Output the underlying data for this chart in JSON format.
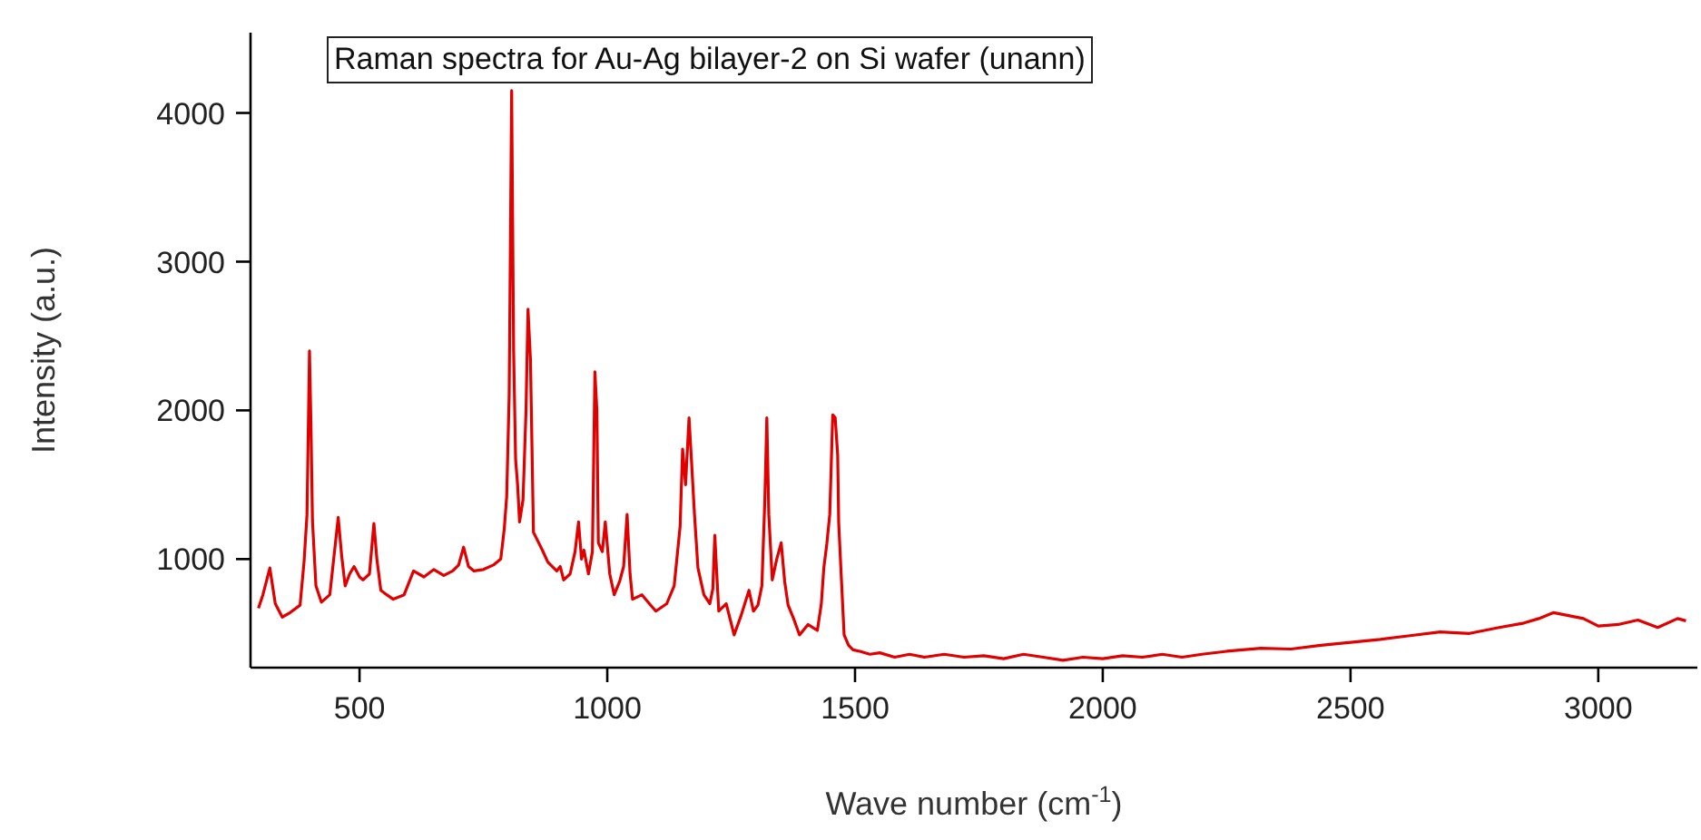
{
  "chart_data": {
    "type": "line",
    "title": "Raman spectra for Au-Ag bilayer-2 on Si wafer (unann)",
    "xlabel": "Wave number (cm$^{-1}$)",
    "ylabel": "Intensity (a.u.)",
    "xlim": [
      280,
      3200
    ],
    "ylim": [
      270,
      4540
    ],
    "xticks": [
      500,
      1000,
      1500,
      2000,
      2500,
      3000
    ],
    "yticks": [
      1000,
      2000,
      3000,
      4000
    ],
    "marker": "none",
    "line_style": "solid",
    "series": [
      {
        "color": "#e00000",
        "x": [
          296,
          305,
          319,
          330,
          344,
          360,
          380,
          388,
          394,
          399,
          402,
          405,
          412,
          423,
          440,
          457,
          464,
          471,
          480,
          489,
          500,
          507,
          520,
          529,
          535,
          543,
          555,
          568,
          590,
          609,
          630,
          650,
          670,
          688,
          700,
          710,
          720,
          731,
          750,
          770,
          785,
          792,
          797,
          802,
          807,
          811,
          815,
          819,
          823,
          830,
          836,
          840,
          845,
          851,
          860,
          869,
          880,
          898,
          905,
          912,
          925,
          935,
          942,
          948,
          953,
          962,
          970,
          975,
          979,
          982,
          990,
          996,
          1005,
          1014,
          1025,
          1033,
          1040,
          1046,
          1051,
          1070,
          1085,
          1098,
          1120,
          1135,
          1147,
          1152,
          1158,
          1165,
          1170,
          1176,
          1183,
          1195,
          1207,
          1213,
          1217,
          1221,
          1225,
          1240,
          1256,
          1270,
          1286,
          1295,
          1304,
          1312,
          1318,
          1322,
          1326,
          1333,
          1342,
          1351,
          1358,
          1365,
          1376,
          1388,
          1405,
          1424,
          1432,
          1437,
          1443,
          1449,
          1455,
          1460,
          1465,
          1467,
          1472,
          1478,
          1487,
          1496,
          1510,
          1530,
          1550,
          1580,
          1610,
          1640,
          1680,
          1720,
          1760,
          1800,
          1840,
          1880,
          1920,
          1960,
          2000,
          2040,
          2080,
          2120,
          2160,
          2200,
          2250,
          2319,
          2380,
          2440,
          2500,
          2560,
          2620,
          2681,
          2740,
          2800,
          2850,
          2880,
          2910,
          2940,
          2970,
          3000,
          3040,
          3080,
          3120,
          3160,
          3177
        ],
        "values": [
          670,
          760,
          940,
          700,
          610,
          640,
          690,
          980,
          1300,
          2400,
          1900,
          1260,
          820,
          710,
          760,
          1280,
          1020,
          820,
          900,
          950,
          880,
          860,
          900,
          1240,
          1000,
          790,
          760,
          730,
          760,
          920,
          880,
          930,
          890,
          920,
          960,
          1080,
          950,
          920,
          930,
          960,
          1000,
          1200,
          1420,
          2100,
          4150,
          2400,
          1670,
          1500,
          1250,
          1400,
          2000,
          2680,
          2340,
          1180,
          1120,
          1060,
          980,
          920,
          950,
          860,
          900,
          1050,
          1250,
          1000,
          1060,
          900,
          1050,
          2260,
          2000,
          1110,
          1050,
          1250,
          900,
          760,
          850,
          950,
          1300,
          900,
          730,
          760,
          700,
          650,
          700,
          820,
          1220,
          1740,
          1500,
          1950,
          1660,
          1300,
          940,
          760,
          700,
          800,
          1160,
          900,
          650,
          700,
          490,
          620,
          790,
          650,
          690,
          820,
          1400,
          1950,
          1300,
          860,
          1000,
          1110,
          850,
          690,
          600,
          490,
          560,
          520,
          700,
          940,
          1100,
          1300,
          1970,
          1950,
          1700,
          1250,
          900,
          490,
          420,
          390,
          380,
          360,
          370,
          340,
          360,
          340,
          360,
          340,
          350,
          330,
          360,
          340,
          320,
          340,
          330,
          350,
          340,
          360,
          340,
          360,
          380,
          400,
          395,
          420,
          440,
          460,
          485,
          510,
          500,
          540,
          570,
          600,
          640,
          620,
          600,
          550,
          560,
          590,
          540,
          600,
          585
        ]
      }
    ]
  }
}
